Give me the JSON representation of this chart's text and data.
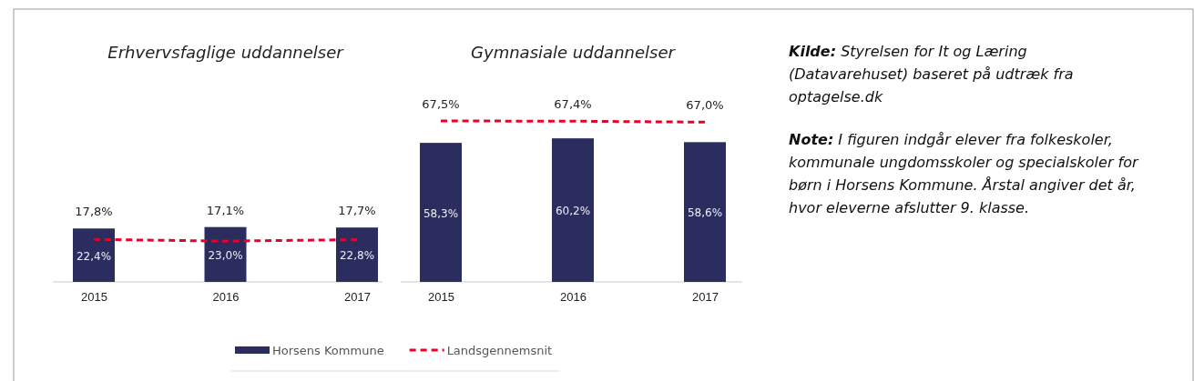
{
  "chart_data": [
    {
      "type": "bar",
      "title": "Erhvervsfaglige uddannelser",
      "categories": [
        "2015",
        "2016",
        "2017"
      ],
      "tick_labels": "x",
      "legend": "bottom",
      "series": [
        {
          "name": "Horsens Kommune",
          "type": "bar",
          "color": "#2b2d5e",
          "values": [
            22.4,
            23.0,
            22.8
          ],
          "value_labels": [
            "22,4%",
            "23,0%",
            "22,8%"
          ]
        },
        {
          "name": "Landsgennemsnit",
          "type": "line",
          "color": "#e8002d",
          "line_style": "dashed",
          "marker": "none",
          "values": [
            17.8,
            17.1,
            17.7
          ],
          "value_labels": [
            "17,8%",
            "17,1%",
            "17,7%"
          ]
        }
      ]
    },
    {
      "type": "bar",
      "title": "Gymnasiale uddannelser",
      "categories": [
        "2015",
        "2016",
        "2017"
      ],
      "tick_labels": "x",
      "series": [
        {
          "type": "bar",
          "color": "#2b2d5e",
          "values": [
            58.3,
            60.2,
            58.6
          ],
          "value_labels": [
            "58,3%",
            "60,2%",
            "58,6%"
          ]
        },
        {
          "type": "line",
          "color": "#e8002d",
          "line_style": "dashed",
          "marker": "none",
          "values": [
            67.5,
            67.4,
            67.0
          ],
          "value_labels": [
            "67,5%",
            "67,4%",
            "67,0%"
          ]
        }
      ]
    },
    {
      "type": "other",
      "annotations": [
        "Kilde: Styrelsen for It og Læring (Datavarehuset) baseret på udtræk fra optagelse.dk",
        "Note: I figuren indgår elever fra folkeskoler, kommunale ungdomsskoler og specialskoler for børn i Horsens Kommune. Årstal angiver det år, hvor eleverne afslutter 9. klasse."
      ]
    }
  ]
}
